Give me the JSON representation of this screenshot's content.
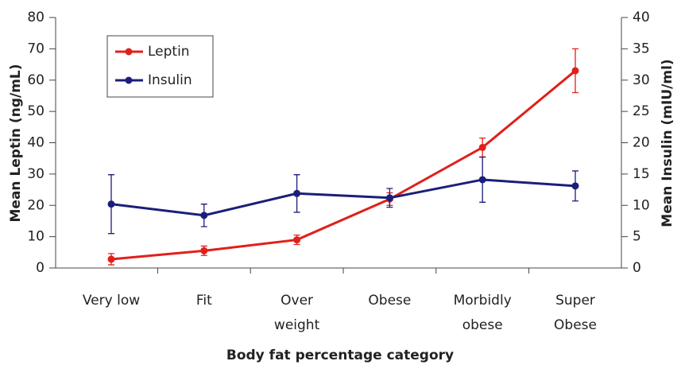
{
  "chart_data": {
    "type": "line",
    "x_label": "Body fat percentage category",
    "y_label": "Mean Leptin (ng/mL)",
    "y2_label": "Mean Insulin (mIU/ml)",
    "categories": [
      "Very low",
      "Fit",
      "Over\nweight",
      "Obese",
      "Morbidly\nobese",
      "Super\nObese"
    ],
    "series": [
      {
        "name": "Leptin",
        "color": "#e0201b",
        "values": [
          2.8,
          5.5,
          9,
          22,
          38.5,
          63
        ],
        "errors": [
          1.8,
          1.5,
          1.5,
          2,
          3,
          7
        ]
      },
      {
        "name": "Insulin",
        "color": "#1a1f7a",
        "axis": "y2",
        "values": [
          10.2,
          8.4,
          11.9,
          11.2,
          14.1,
          13.1
        ],
        "errors": [
          4.7,
          1.8,
          3.0,
          1.5,
          3.6,
          2.4
        ]
      }
    ],
    "ylim": [
      0,
      80
    ],
    "yticks": [
      0,
      10,
      20,
      30,
      40,
      50,
      60,
      70,
      80
    ],
    "y2lim": [
      0,
      40
    ],
    "y2ticks": [
      0,
      5,
      10,
      15,
      20,
      25,
      30,
      35,
      40
    ],
    "legend": "upper left",
    "grid": false
  }
}
